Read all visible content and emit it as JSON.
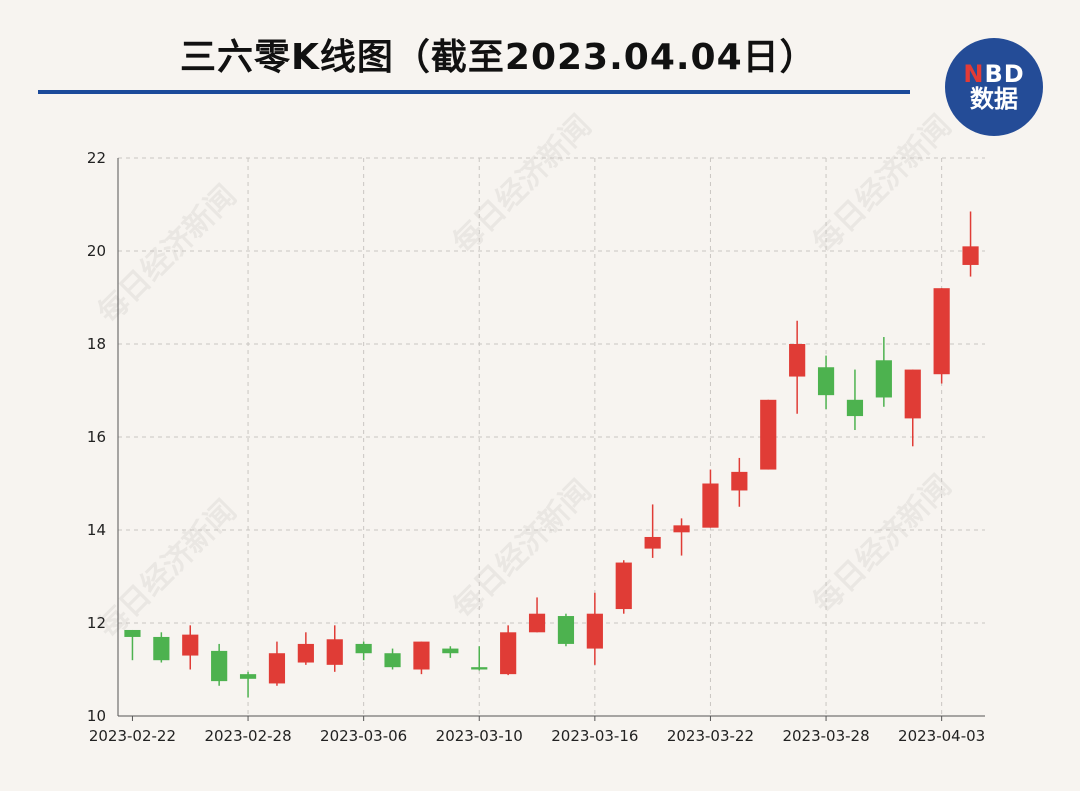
{
  "header": {
    "title": "三六零K线图（截至2023.04.04日）",
    "logo_top_n": "N",
    "logo_top_rest": "BD",
    "logo_bottom": "数据"
  },
  "watermark_text": "每日经济新闻",
  "colors": {
    "background": "#f7f4f0",
    "up": "#e03c36",
    "down": "#4db24f",
    "grid": "#c9c6c2",
    "title_rule": "#1b4a9a",
    "logo_bg": "#244c97"
  },
  "chart_data": {
    "type": "candlestick",
    "ylim": [
      10,
      22
    ],
    "yticks": [
      10,
      12,
      14,
      16,
      18,
      20,
      22
    ],
    "xtick_labels": [
      "2023-02-22",
      "2023-02-28",
      "2023-03-06",
      "2023-03-10",
      "2023-03-16",
      "2023-03-22",
      "2023-03-28",
      "2023-04-03"
    ],
    "xtick_indices": [
      0,
      4,
      8,
      12,
      16,
      20,
      24,
      28
    ],
    "grid": true,
    "candles": [
      {
        "open": 11.85,
        "close": 11.7,
        "high": 11.85,
        "low": 11.2
      },
      {
        "open": 11.7,
        "close": 11.2,
        "high": 11.8,
        "low": 11.15
      },
      {
        "open": 11.3,
        "close": 11.75,
        "high": 11.95,
        "low": 11.0
      },
      {
        "open": 11.4,
        "close": 10.75,
        "high": 11.55,
        "low": 10.65
      },
      {
        "open": 10.9,
        "close": 10.8,
        "high": 10.95,
        "low": 10.4
      },
      {
        "open": 10.7,
        "close": 11.35,
        "high": 11.6,
        "low": 10.65
      },
      {
        "open": 11.15,
        "close": 11.55,
        "high": 11.8,
        "low": 11.1
      },
      {
        "open": 11.1,
        "close": 11.65,
        "high": 11.95,
        "low": 10.95
      },
      {
        "open": 11.55,
        "close": 11.35,
        "high": 11.6,
        "low": 11.2
      },
      {
        "open": 11.35,
        "close": 11.05,
        "high": 11.45,
        "low": 11.0
      },
      {
        "open": 11.0,
        "close": 11.6,
        "high": 11.6,
        "low": 10.9
      },
      {
        "open": 11.45,
        "close": 11.35,
        "high": 11.5,
        "low": 11.25
      },
      {
        "open": 11.05,
        "close": 11.0,
        "high": 11.5,
        "low": 10.98
      },
      {
        "open": 10.9,
        "close": 11.8,
        "high": 11.95,
        "low": 10.88
      },
      {
        "open": 11.8,
        "close": 12.2,
        "high": 12.55,
        "low": 11.8
      },
      {
        "open": 12.15,
        "close": 11.55,
        "high": 12.2,
        "low": 11.5
      },
      {
        "open": 11.45,
        "close": 12.2,
        "high": 12.65,
        "low": 11.1
      },
      {
        "open": 12.3,
        "close": 13.3,
        "high": 13.35,
        "low": 12.2
      },
      {
        "open": 13.6,
        "close": 13.85,
        "high": 14.55,
        "low": 13.4
      },
      {
        "open": 13.95,
        "close": 14.1,
        "high": 14.25,
        "low": 13.45
      },
      {
        "open": 14.05,
        "close": 15.0,
        "high": 15.3,
        "low": 14.05
      },
      {
        "open": 14.85,
        "close": 15.25,
        "high": 15.55,
        "low": 14.5
      },
      {
        "open": 15.3,
        "close": 16.8,
        "high": 16.8,
        "low": 15.3
      },
      {
        "open": 17.3,
        "close": 18.0,
        "high": 18.5,
        "low": 16.5
      },
      {
        "open": 17.5,
        "close": 16.9,
        "high": 17.75,
        "low": 16.6
      },
      {
        "open": 16.8,
        "close": 16.45,
        "high": 17.45,
        "low": 16.15
      },
      {
        "open": 17.65,
        "close": 16.85,
        "high": 18.15,
        "low": 16.65
      },
      {
        "open": 16.4,
        "close": 17.45,
        "high": 17.45,
        "low": 15.8
      },
      {
        "open": 17.35,
        "close": 19.2,
        "high": 19.2,
        "low": 17.15
      },
      {
        "open": 19.7,
        "close": 20.1,
        "high": 20.85,
        "low": 19.45
      }
    ]
  }
}
